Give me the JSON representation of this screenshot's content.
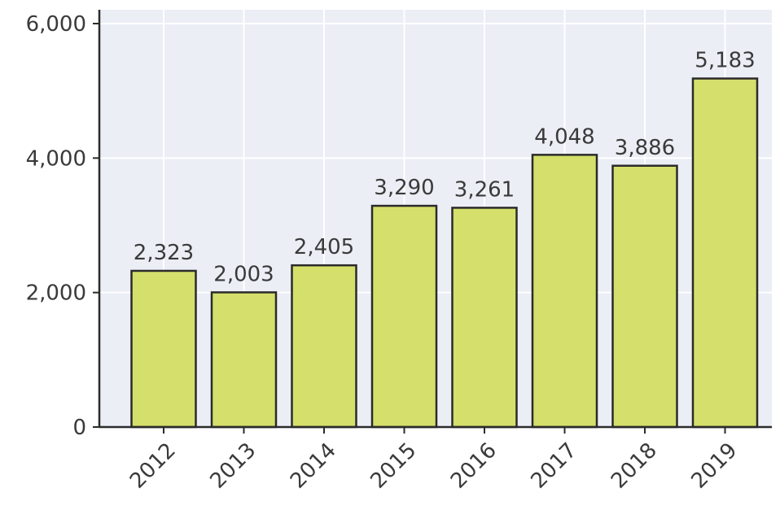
{
  "chart_data": {
    "type": "bar",
    "title": "",
    "xlabel": "",
    "ylabel": "",
    "categories": [
      "2012",
      "2013",
      "2014",
      "2015",
      "2016",
      "2017",
      "2018",
      "2019"
    ],
    "values": [
      2323,
      2003,
      2405,
      3290,
      3261,
      4048,
      3886,
      5183
    ],
    "value_labels": [
      "2,323",
      "2,003",
      "2,405",
      "3,290",
      "3,261",
      "4,048",
      "3,886",
      "5,183"
    ],
    "y_ticks": [
      0,
      2000,
      4000,
      6000
    ],
    "y_tick_labels": [
      "0",
      "2,000",
      "4,000",
      "6,000"
    ],
    "ylim": [
      0,
      6000
    ],
    "grid": true,
    "legend": "none",
    "colors": {
      "bar_fill": "#d4e06b",
      "bar_stroke": "#2b2b2b",
      "plot_background": "#ebeef5",
      "grid": "#ffffff",
      "axis": "#2b2b2b",
      "text": "#3a3a3a"
    }
  }
}
